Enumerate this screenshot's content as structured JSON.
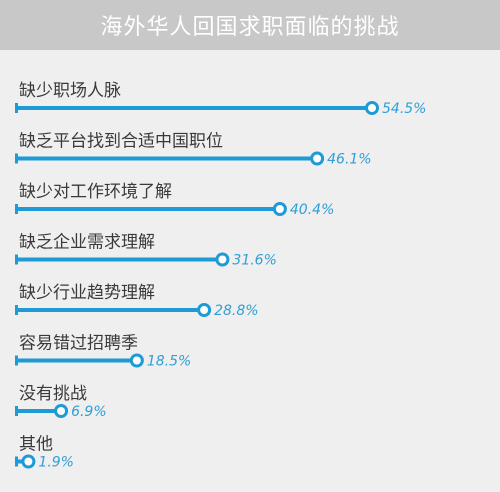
{
  "title": "海外华人回国求职面临的挑战",
  "colors": {
    "background": "#efefef",
    "title_bar": "#c8c8c8",
    "title_text": "#ffffff",
    "bar": "#1e9ad6",
    "value_text": "#2f9fd6",
    "label_text": "#3a3a3a"
  },
  "chart_data": {
    "type": "bar",
    "orientation": "horizontal",
    "categories": [
      "缺少职场人脉",
      "缺乏平台找到合适中国职位",
      "缺少对工作环境了解",
      "缺乏企业需求理解",
      "缺少行业趋势理解",
      "容易错过招聘季",
      "没有挑战",
      "其他"
    ],
    "values": [
      54.5,
      46.1,
      40.4,
      31.6,
      28.8,
      18.5,
      6.9,
      1.9
    ],
    "value_labels": [
      "54.5%",
      "46.1%",
      "40.4%",
      "31.6%",
      "28.8%",
      "18.5%",
      "6.9%",
      "1.9%"
    ],
    "unit": "%",
    "xlim": [
      0,
      54.5
    ],
    "grid": false,
    "legend": "none"
  }
}
